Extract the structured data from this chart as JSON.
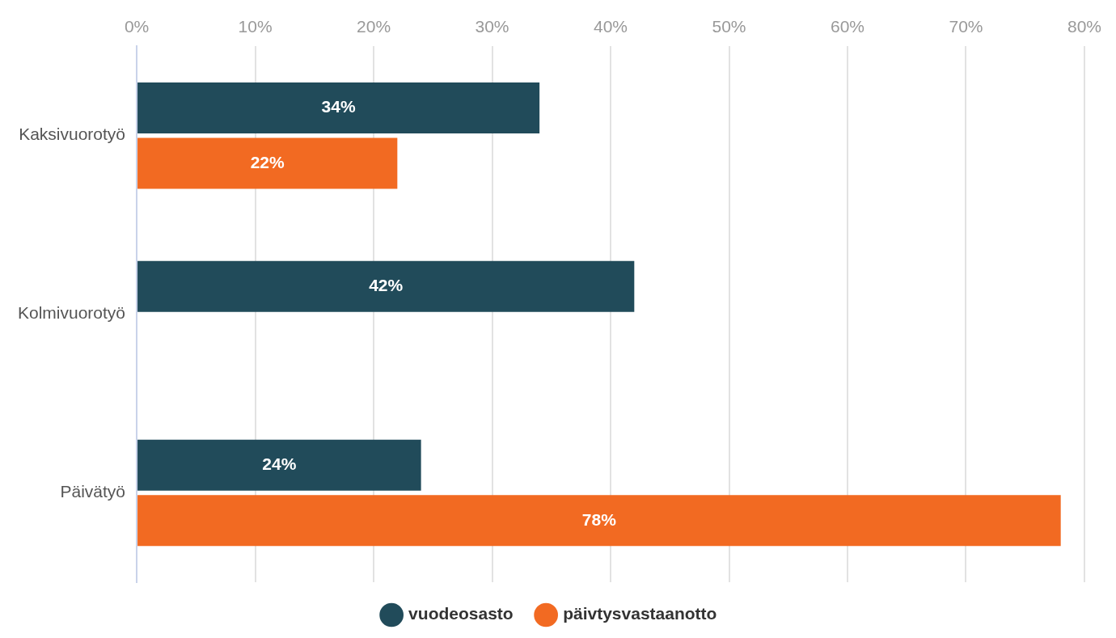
{
  "chart_data": {
    "type": "bar",
    "orientation": "horizontal",
    "categories": [
      "Kaksivuorotyö",
      "Kolmivuorotyö",
      "Päivätyö"
    ],
    "series": [
      {
        "name": "vuodeosasto",
        "color": "#214b5a",
        "values": [
          34,
          42,
          24
        ],
        "value_labels": [
          "34%",
          "42%",
          "24%"
        ]
      },
      {
        "name": "päivtysvastaanotto",
        "color": "#f26a22",
        "values": [
          22,
          null,
          78
        ],
        "value_labels": [
          "22%",
          null,
          "78%"
        ]
      }
    ],
    "xlim": [
      0,
      80
    ],
    "xticks": [
      {
        "value": 0,
        "label": "0%"
      },
      {
        "value": 10,
        "label": "10%"
      },
      {
        "value": 20,
        "label": "20%"
      },
      {
        "value": 30,
        "label": "30%"
      },
      {
        "value": 40,
        "label": "40%"
      },
      {
        "value": 50,
        "label": "50%"
      },
      {
        "value": 60,
        "label": "60%"
      },
      {
        "value": 70,
        "label": "70%"
      },
      {
        "value": 80,
        "label": "80%"
      }
    ],
    "grid": "x",
    "legend": "bottom"
  }
}
